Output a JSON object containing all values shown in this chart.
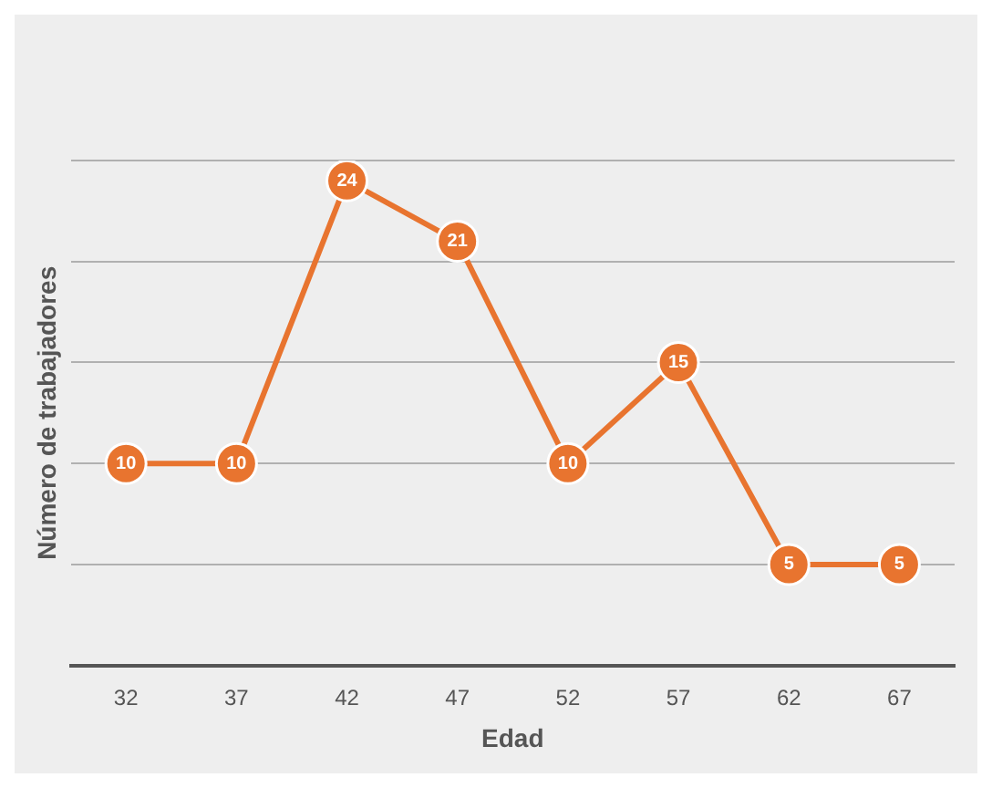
{
  "chart_data": {
    "type": "line",
    "xlabel": "Edad",
    "ylabel": "Número de trabajadores",
    "categories": [
      "32",
      "37",
      "42",
      "47",
      "52",
      "57",
      "62",
      "67"
    ],
    "series": [
      {
        "color": "#e8742f",
        "values": [
          10,
          10,
          24,
          21,
          10,
          15,
          5,
          5
        ]
      }
    ],
    "ylim": [
      0,
      25
    ],
    "yticks": [
      {
        "value": 0,
        "label": null
      },
      {
        "value": 5,
        "label": null
      },
      {
        "value": 10,
        "label": null
      },
      {
        "value": 15,
        "label": null
      },
      {
        "value": 20,
        "label": null
      },
      {
        "value": 25,
        "label": null
      }
    ],
    "tick_labels": "x",
    "grid": "y",
    "marker": "circle",
    "line_style": "solid",
    "data_labels": true,
    "legend": false
  }
}
